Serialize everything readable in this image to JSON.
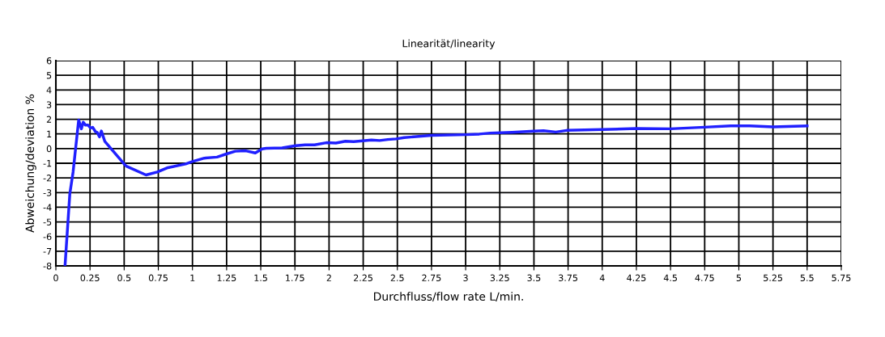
{
  "chart_data": {
    "type": "line",
    "title": "Linearität/linearity",
    "xlabel": "Durchfluss/flow rate L/min.",
    "ylabel": "Abweichung/deviation %",
    "xlim": [
      0,
      5.75
    ],
    "xticks": [
      0,
      0.25,
      0.5,
      0.75,
      1,
      1.25,
      1.5,
      1.75,
      2,
      2.25,
      2.5,
      2.75,
      3,
      3.25,
      3.5,
      3.75,
      4,
      4.25,
      4.5,
      4.75,
      5,
      5.25,
      5.5,
      5.75
    ],
    "ylim": [
      -8,
      6
    ],
    "yticks": [
      -8,
      -7,
      -6,
      -5,
      -4,
      -3,
      -2,
      -1,
      0,
      1,
      2,
      3,
      4,
      5,
      6
    ],
    "grid": true,
    "marker": "none",
    "line_style": "solid",
    "series": [
      {
        "color": "#2020ff",
        "x": [
          0.067,
          0.102,
          0.126,
          0.167,
          0.187,
          0.2,
          0.217,
          0.236,
          0.254,
          0.27,
          0.29,
          0.303,
          0.319,
          0.333,
          0.358,
          0.5,
          0.516,
          0.66,
          0.742,
          0.82,
          0.95,
          1.0,
          1.087,
          1.18,
          1.244,
          1.313,
          1.39,
          1.46,
          1.51,
          1.54,
          1.657,
          1.756,
          1.825,
          1.894,
          1.98,
          2.05,
          2.12,
          2.18,
          2.31,
          2.37,
          2.43,
          2.49,
          2.55,
          2.75,
          3.0,
          3.1,
          3.18,
          3.34,
          3.5,
          3.57,
          3.66,
          3.74,
          4.0,
          4.25,
          4.5,
          4.75,
          4.94,
          5.08,
          5.25,
          5.5
        ],
        "values": [
          -8,
          -3.1,
          -1.6,
          1.95,
          1.35,
          1.8,
          1.6,
          1.6,
          1.4,
          1.45,
          1.15,
          1.1,
          0.8,
          1.2,
          0.5,
          -1.05,
          -1.2,
          -1.8,
          -1.6,
          -1.3,
          -1.05,
          -0.88,
          -0.65,
          -0.58,
          -0.38,
          -0.18,
          -0.15,
          -0.3,
          -0.02,
          0.02,
          0.05,
          0.2,
          0.25,
          0.25,
          0.4,
          0.38,
          0.5,
          0.47,
          0.58,
          0.55,
          0.62,
          0.66,
          0.75,
          0.9,
          0.95,
          0.99,
          1.06,
          1.11,
          1.19,
          1.22,
          1.13,
          1.24,
          1.3,
          1.37,
          1.35,
          1.46,
          1.55,
          1.55,
          1.48,
          1.55
        ]
      }
    ]
  }
}
